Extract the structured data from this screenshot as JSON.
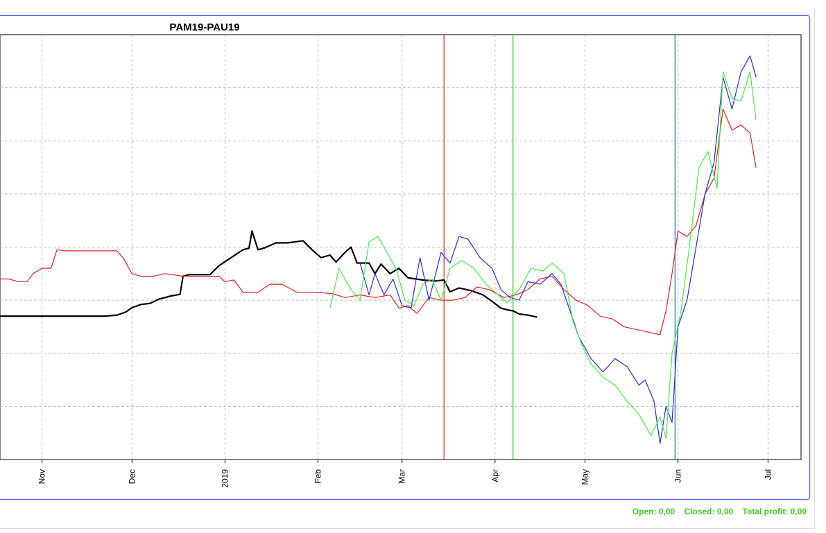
{
  "chart_data": {
    "type": "line",
    "title": "PAM19-PAU19",
    "x_ticks": [
      "Nov",
      "Dec",
      "2019",
      "Feb",
      "Mar",
      "Apr",
      "May",
      "Jun",
      "Jul"
    ],
    "xlim": [
      "2018-10-18",
      "2019-07-12"
    ],
    "ylim": [
      0,
      8
    ],
    "grid": true,
    "vertical_markers": [
      {
        "date": "2019-03-15",
        "color": "#e02020"
      },
      {
        "date": "2019-04-07",
        "color": "#1ec81e"
      },
      {
        "date": "2019-05-31",
        "color": "#1a7a9a"
      }
    ],
    "series": [
      {
        "color": "#000000",
        "points": [
          [
            "2018-10-18",
            2.7
          ],
          [
            "2018-10-25",
            2.7
          ],
          [
            "2018-11-01",
            2.7
          ],
          [
            "2018-11-08",
            2.7
          ],
          [
            "2018-11-15",
            2.7
          ],
          [
            "2018-11-22",
            2.7
          ],
          [
            "2018-11-26",
            2.72
          ],
          [
            "2018-11-29",
            2.78
          ],
          [
            "2018-12-01",
            2.86
          ],
          [
            "2018-12-04",
            2.92
          ],
          [
            "2018-12-07",
            2.94
          ],
          [
            "2018-12-10",
            3.02
          ],
          [
            "2018-12-14",
            3.08
          ],
          [
            "2018-12-17",
            3.11
          ],
          [
            "2018-12-18",
            3.45
          ],
          [
            "2018-12-20",
            3.48
          ],
          [
            "2018-12-27",
            3.48
          ],
          [
            "2018-12-30",
            3.65
          ],
          [
            "2019-01-03",
            3.8
          ],
          [
            "2019-01-07",
            3.95
          ],
          [
            "2019-01-09",
            3.98
          ],
          [
            "2019-01-10",
            4.3
          ],
          [
            "2019-01-12",
            3.95
          ],
          [
            "2019-01-14",
            3.98
          ],
          [
            "2019-01-18",
            4.08
          ],
          [
            "2019-01-22",
            4.08
          ],
          [
            "2019-01-27",
            4.12
          ],
          [
            "2019-01-30",
            3.95
          ],
          [
            "2019-02-02",
            3.8
          ],
          [
            "2019-02-05",
            3.85
          ],
          [
            "2019-02-07",
            3.72
          ],
          [
            "2019-02-10",
            3.9
          ],
          [
            "2019-02-12",
            4.0
          ],
          [
            "2019-02-14",
            3.7
          ],
          [
            "2019-02-18",
            3.7
          ],
          [
            "2019-02-20",
            3.5
          ],
          [
            "2019-02-22",
            3.68
          ],
          [
            "2019-02-25",
            3.5
          ],
          [
            "2019-02-28",
            3.6
          ],
          [
            "2019-03-03",
            3.42
          ],
          [
            "2019-03-08",
            3.38
          ],
          [
            "2019-03-12",
            3.36
          ],
          [
            "2019-03-15",
            3.38
          ],
          [
            "2019-03-17",
            3.16
          ],
          [
            "2019-03-20",
            3.23
          ],
          [
            "2019-03-24",
            3.18
          ],
          [
            "2019-03-28",
            3.1
          ],
          [
            "2019-03-31",
            2.98
          ],
          [
            "2019-04-03",
            2.85
          ],
          [
            "2019-04-05",
            2.82
          ],
          [
            "2019-04-07",
            2.8
          ],
          [
            "2019-04-09",
            2.74
          ],
          [
            "2019-04-12",
            2.72
          ],
          [
            "2019-04-15",
            2.68
          ]
        ]
      },
      {
        "color": "#e02020",
        "points": [
          [
            "2018-10-18",
            3.4
          ],
          [
            "2018-10-21",
            3.4
          ],
          [
            "2018-10-24",
            3.35
          ],
          [
            "2018-10-27",
            3.35
          ],
          [
            "2018-10-29",
            3.5
          ],
          [
            "2018-11-01",
            3.6
          ],
          [
            "2018-11-04",
            3.6
          ],
          [
            "2018-11-06",
            3.95
          ],
          [
            "2018-11-09",
            3.93
          ],
          [
            "2018-11-15",
            3.93
          ],
          [
            "2018-11-22",
            3.93
          ],
          [
            "2018-11-26",
            3.93
          ],
          [
            "2018-11-28",
            3.8
          ],
          [
            "2018-12-01",
            3.5
          ],
          [
            "2018-12-04",
            3.45
          ],
          [
            "2018-12-08",
            3.45
          ],
          [
            "2018-12-12",
            3.5
          ],
          [
            "2018-12-18",
            3.45
          ],
          [
            "2018-12-25",
            3.45
          ],
          [
            "2018-12-30",
            3.45
          ],
          [
            "2019-01-01",
            3.35
          ],
          [
            "2019-01-04",
            3.38
          ],
          [
            "2019-01-07",
            3.15
          ],
          [
            "2019-01-12",
            3.15
          ],
          [
            "2019-01-16",
            3.3
          ],
          [
            "2019-01-20",
            3.3
          ],
          [
            "2019-01-25",
            3.15
          ],
          [
            "2019-02-01",
            3.15
          ],
          [
            "2019-02-06",
            3.12
          ],
          [
            "2019-02-10",
            3.05
          ],
          [
            "2019-02-15",
            3.1
          ],
          [
            "2019-02-20",
            3.05
          ],
          [
            "2019-02-25",
            3.1
          ],
          [
            "2019-02-28",
            2.85
          ],
          [
            "2019-03-03",
            2.9
          ],
          [
            "2019-03-06",
            2.75
          ],
          [
            "2019-03-10",
            3.05
          ],
          [
            "2019-03-14",
            3.0
          ],
          [
            "2019-03-18",
            3.0
          ],
          [
            "2019-03-22",
            3.05
          ],
          [
            "2019-03-26",
            3.25
          ],
          [
            "2019-03-30",
            3.2
          ],
          [
            "2019-04-04",
            3.05
          ],
          [
            "2019-04-08",
            3.1
          ],
          [
            "2019-04-12",
            3.2
          ],
          [
            "2019-04-16",
            3.4
          ],
          [
            "2019-04-20",
            3.45
          ],
          [
            "2019-04-24",
            3.2
          ],
          [
            "2019-04-28",
            3.0
          ],
          [
            "2019-05-02",
            2.9
          ],
          [
            "2019-05-06",
            2.7
          ],
          [
            "2019-05-10",
            2.65
          ],
          [
            "2019-05-14",
            2.5
          ],
          [
            "2019-05-18",
            2.45
          ],
          [
            "2019-05-22",
            2.4
          ],
          [
            "2019-05-26",
            2.35
          ],
          [
            "2019-05-28",
            2.8
          ],
          [
            "2019-05-30",
            3.5
          ],
          [
            "2019-06-01",
            4.3
          ],
          [
            "2019-06-04",
            4.2
          ],
          [
            "2019-06-07",
            4.4
          ],
          [
            "2019-06-10",
            5.0
          ],
          [
            "2019-06-13",
            5.3
          ],
          [
            "2019-06-16",
            6.6
          ],
          [
            "2019-06-19",
            6.2
          ],
          [
            "2019-06-22",
            6.3
          ],
          [
            "2019-06-25",
            6.15
          ],
          [
            "2019-06-27",
            5.5
          ]
        ]
      },
      {
        "color": "#2a2ae0",
        "points": [
          [
            "2019-02-15",
            3.7
          ],
          [
            "2019-02-18",
            3.1
          ],
          [
            "2019-02-20",
            3.5
          ],
          [
            "2019-02-23",
            3.1
          ],
          [
            "2019-02-26",
            3.4
          ],
          [
            "2019-03-01",
            2.9
          ],
          [
            "2019-03-04",
            2.85
          ],
          [
            "2019-03-07",
            3.8
          ],
          [
            "2019-03-10",
            3.0
          ],
          [
            "2019-03-14",
            3.9
          ],
          [
            "2019-03-17",
            3.7
          ],
          [
            "2019-03-20",
            4.2
          ],
          [
            "2019-03-23",
            4.15
          ],
          [
            "2019-03-27",
            3.8
          ],
          [
            "2019-03-31",
            3.6
          ],
          [
            "2019-04-03",
            3.2
          ],
          [
            "2019-04-06",
            3.05
          ],
          [
            "2019-04-09",
            3.0
          ],
          [
            "2019-04-12",
            3.35
          ],
          [
            "2019-04-16",
            3.3
          ],
          [
            "2019-04-20",
            3.5
          ],
          [
            "2019-04-23",
            3.3
          ],
          [
            "2019-04-26",
            2.8
          ],
          [
            "2019-04-29",
            2.3
          ],
          [
            "2019-05-03",
            1.9
          ],
          [
            "2019-05-07",
            1.65
          ],
          [
            "2019-05-11",
            1.9
          ],
          [
            "2019-05-15",
            1.75
          ],
          [
            "2019-05-19",
            1.4
          ],
          [
            "2019-05-21",
            1.5
          ],
          [
            "2019-05-24",
            1.1
          ],
          [
            "2019-05-26",
            0.3
          ],
          [
            "2019-05-28",
            1.0
          ],
          [
            "2019-05-30",
            0.7
          ],
          [
            "2019-06-01",
            2.5
          ],
          [
            "2019-06-04",
            3.0
          ],
          [
            "2019-06-07",
            4.0
          ],
          [
            "2019-06-10",
            5.0
          ],
          [
            "2019-06-13",
            5.6
          ],
          [
            "2019-06-16",
            7.2
          ],
          [
            "2019-06-19",
            6.6
          ],
          [
            "2019-06-22",
            7.3
          ],
          [
            "2019-06-25",
            7.6
          ],
          [
            "2019-06-27",
            7.2
          ]
        ]
      },
      {
        "color": "#44ee44",
        "points": [
          [
            "2019-02-05",
            2.85
          ],
          [
            "2019-02-08",
            3.6
          ],
          [
            "2019-02-12",
            3.2
          ],
          [
            "2019-02-15",
            3.0
          ],
          [
            "2019-02-18",
            4.1
          ],
          [
            "2019-02-21",
            4.2
          ],
          [
            "2019-02-24",
            3.9
          ],
          [
            "2019-02-27",
            3.6
          ],
          [
            "2019-03-02",
            3.0
          ],
          [
            "2019-03-05",
            2.9
          ],
          [
            "2019-03-08",
            3.3
          ],
          [
            "2019-03-11",
            3.4
          ],
          [
            "2019-03-14",
            3.0
          ],
          [
            "2019-03-17",
            3.6
          ],
          [
            "2019-03-21",
            3.75
          ],
          [
            "2019-03-25",
            3.6
          ],
          [
            "2019-03-29",
            3.3
          ],
          [
            "2019-04-02",
            3.1
          ],
          [
            "2019-04-05",
            2.95
          ],
          [
            "2019-04-09",
            3.2
          ],
          [
            "2019-04-13",
            3.6
          ],
          [
            "2019-04-17",
            3.55
          ],
          [
            "2019-04-20",
            3.7
          ],
          [
            "2019-04-24",
            3.5
          ],
          [
            "2019-04-27",
            2.6
          ],
          [
            "2019-04-30",
            2.15
          ],
          [
            "2019-05-03",
            1.8
          ],
          [
            "2019-05-07",
            1.55
          ],
          [
            "2019-05-11",
            1.4
          ],
          [
            "2019-05-15",
            1.1
          ],
          [
            "2019-05-19",
            0.85
          ],
          [
            "2019-05-23",
            0.45
          ],
          [
            "2019-05-26",
            0.8
          ],
          [
            "2019-05-28",
            0.4
          ],
          [
            "2019-05-30",
            2.0
          ],
          [
            "2019-06-02",
            2.8
          ],
          [
            "2019-06-05",
            4.1
          ],
          [
            "2019-06-08",
            5.5
          ],
          [
            "2019-06-11",
            5.8
          ],
          [
            "2019-06-14",
            5.1
          ],
          [
            "2019-06-16",
            7.3
          ],
          [
            "2019-06-19",
            6.8
          ],
          [
            "2019-06-22",
            6.75
          ],
          [
            "2019-06-25",
            7.3
          ],
          [
            "2019-06-27",
            6.4
          ]
        ]
      }
    ]
  },
  "footer": {
    "open": "Open: 0,00",
    "closed": "Closed: 0,00",
    "total": "Total profit: 0,00",
    "color": "#3ccc1e"
  }
}
